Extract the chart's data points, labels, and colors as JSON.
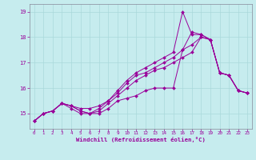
{
  "xlabel": "Windchill (Refroidissement éolien,°C)",
  "background_color": "#c6ecee",
  "line_color": "#990099",
  "grid_color": "#aad8da",
  "xlim": [
    -0.5,
    23.5
  ],
  "ylim": [
    14.4,
    19.3
  ],
  "yticks": [
    15,
    16,
    17,
    18,
    19
  ],
  "xticks": [
    0,
    1,
    2,
    3,
    4,
    5,
    6,
    7,
    8,
    9,
    10,
    11,
    12,
    13,
    14,
    15,
    16,
    17,
    18,
    19,
    20,
    21,
    22,
    23
  ],
  "series": [
    [
      14.7,
      15.0,
      15.1,
      15.4,
      15.2,
      15.0,
      15.0,
      15.0,
      15.2,
      15.5,
      15.6,
      15.7,
      15.9,
      16.0,
      16.0,
      16.0,
      17.5,
      17.7,
      18.0,
      17.9,
      16.6,
      16.5,
      15.9,
      15.8
    ],
    [
      14.7,
      15.0,
      15.1,
      15.4,
      15.3,
      15.2,
      15.2,
      15.3,
      15.5,
      15.8,
      16.2,
      16.5,
      16.6,
      16.8,
      17.0,
      17.2,
      17.5,
      18.2,
      18.1,
      17.9,
      16.6,
      16.5,
      15.9,
      15.8
    ],
    [
      14.7,
      15.0,
      15.1,
      15.4,
      15.3,
      15.1,
      15.0,
      15.2,
      15.5,
      15.9,
      16.3,
      16.6,
      16.8,
      17.0,
      17.2,
      17.4,
      19.0,
      18.1,
      18.1,
      17.9,
      16.6,
      16.5,
      15.9,
      15.8
    ],
    [
      14.7,
      15.0,
      15.1,
      15.4,
      15.3,
      15.1,
      15.0,
      15.1,
      15.4,
      15.7,
      16.0,
      16.3,
      16.5,
      16.7,
      16.8,
      17.0,
      17.2,
      17.4,
      18.0,
      17.9,
      16.6,
      16.5,
      15.9,
      15.8
    ]
  ]
}
